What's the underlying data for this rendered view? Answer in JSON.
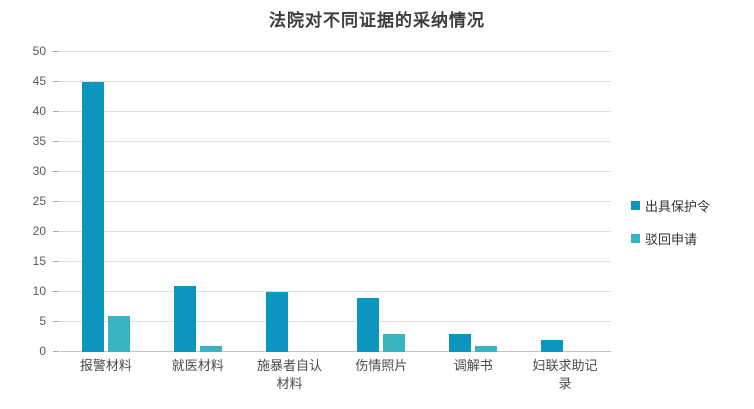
{
  "chart_data": {
    "type": "bar",
    "title": "法院对不同证据的采纳情况",
    "categories": [
      "报警材料",
      "就医材料",
      "施暴者自认材料",
      "伤情照片",
      "调解书",
      "妇联求助记录"
    ],
    "series": [
      {
        "name": "出具保护令",
        "color": "#0b95bf",
        "values": [
          45,
          11,
          10,
          9,
          3,
          2
        ]
      },
      {
        "name": "驳回申请",
        "color": "#38b4c2",
        "values": [
          6,
          1,
          0,
          3,
          1,
          0
        ]
      }
    ],
    "xlabel": "",
    "ylabel": "",
    "ylim": [
      0,
      50
    ],
    "ytick_step": 5,
    "grid": true,
    "legend_position": "right"
  },
  "ui_colors": {
    "gridline": "#e0e0e0",
    "axis_line": "#c4c4c4",
    "tick_mark": "#a8a8a8",
    "title_text": "#3d3d3d",
    "axis_text": "#595959",
    "category_text": "#4a4a4a",
    "legend_text": "#333333",
    "background": "#ffffff"
  }
}
